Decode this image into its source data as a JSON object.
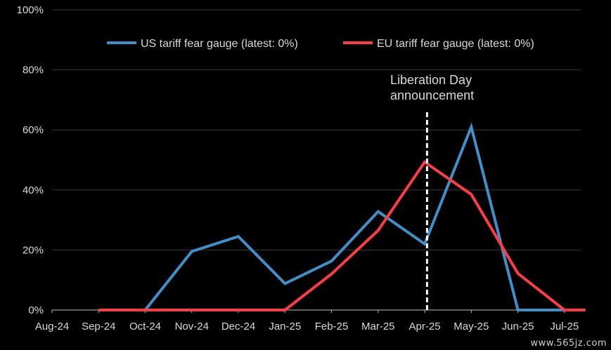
{
  "chart_data": {
    "type": "line",
    "title": "",
    "xlabel": "",
    "ylabel": "",
    "x": [
      "Aug-24",
      "Sep-24",
      "Oct-24",
      "Nov-24",
      "Dec-24",
      "Jan-25",
      "Feb-25",
      "Mar-25",
      "Apr-25",
      "May-25",
      "Jun-25",
      "Jul-25"
    ],
    "y_ticks": [
      "0%",
      "20%",
      "40%",
      "60%",
      "80%",
      "100%"
    ],
    "ylim": [
      0,
      100
    ],
    "grid": "horizontal",
    "legend_position": "top",
    "series": [
      {
        "name": "US tariff fear gauge (latest: 0%)",
        "color": "#3f8fc8",
        "points": [
          [
            1,
            0
          ],
          [
            2,
            0
          ],
          [
            3,
            19.5
          ],
          [
            4,
            24.5
          ],
          [
            5,
            8.8
          ],
          [
            6,
            16.3
          ],
          [
            7,
            32.8
          ],
          [
            8,
            22.0
          ],
          [
            9,
            61.0
          ],
          [
            10,
            0
          ],
          [
            11,
            0
          ],
          [
            11.45,
            0
          ]
        ]
      },
      {
        "name": "EU tariff fear gauge (latest: 0%)",
        "color": "#ff3c46",
        "points": [
          [
            1,
            0
          ],
          [
            2,
            0
          ],
          [
            3,
            0
          ],
          [
            4,
            0
          ],
          [
            5,
            0
          ],
          [
            6,
            12.0
          ],
          [
            7,
            26.5
          ],
          [
            8,
            49.3
          ],
          [
            9,
            38.5
          ],
          [
            10,
            12.2
          ],
          [
            11,
            0
          ],
          [
            11.45,
            0
          ]
        ]
      }
    ],
    "annotation": {
      "lines": [
        "Liberation Day",
        "announcement"
      ],
      "x": 8.05
    }
  },
  "watermark": "www.565jz.com"
}
